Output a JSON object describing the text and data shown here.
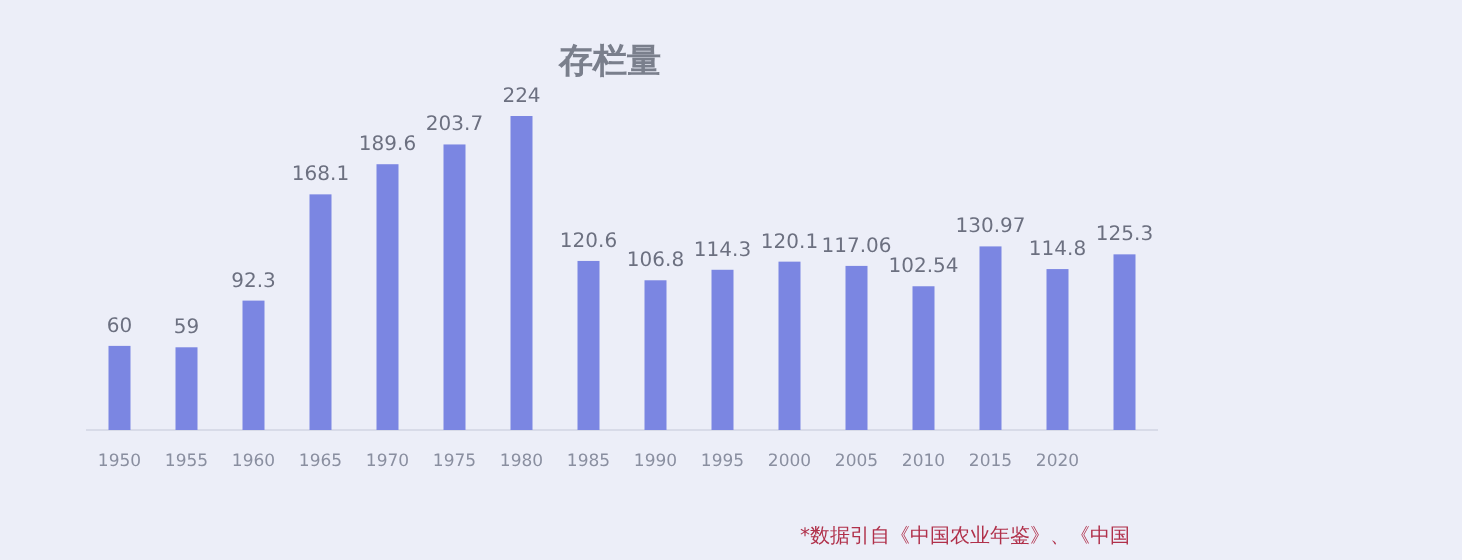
{
  "chart_data": {
    "type": "bar",
    "title": "存栏量",
    "categories": [
      "1950",
      "1955",
      "1960",
      "1965",
      "1970",
      "1975",
      "1980",
      "1985",
      "1990",
      "1995",
      "2000",
      "2005",
      "2010",
      "2015",
      "2020",
      null
    ],
    "values": [
      60,
      59,
      92.3,
      168.1,
      189.6,
      203.7,
      224,
      120.6,
      106.8,
      114.3,
      120.1,
      117.06,
      102.54,
      130.97,
      114.8,
      125.3
    ],
    "value_labels": [
      "60",
      "59",
      "92.3",
      "168.1",
      "189.6",
      "203.7",
      "224",
      "120.6",
      "106.8",
      "114.3",
      "120.1",
      "117.06",
      "102.54",
      "130.97",
      "114.8",
      "125.3"
    ],
    "color": "#7b86e2",
    "annotations": [
      "*数据引自《中国农业年鉴》、《中国"
    ]
  }
}
